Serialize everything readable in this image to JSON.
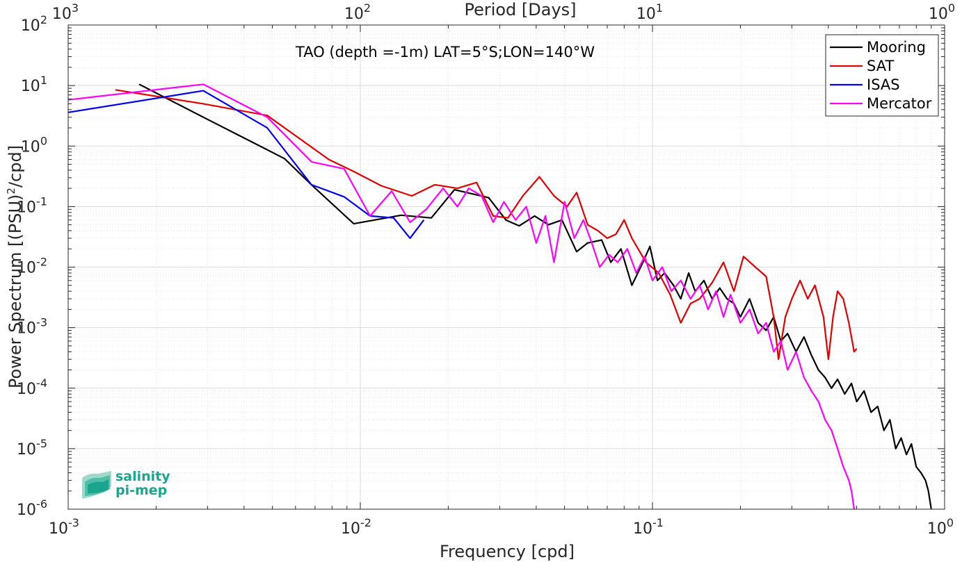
{
  "chart_data": {
    "type": "line",
    "annotation": "TAO (depth =-1m) LAT=5°S;LON=140°W",
    "xlabel": "Frequency [cpd]",
    "ylabel": "Power Spectrum [(PSU)²/cpd]",
    "ylabel_parts": {
      "main": "Power Spectrum [(PSU)",
      "sup": "2",
      "tail": "/cpd]"
    },
    "top_xlabel": "Period [Days]",
    "xscale": "log",
    "yscale": "log",
    "xlim": [
      0.001,
      1
    ],
    "ylim": [
      1e-06,
      100
    ],
    "grid": true,
    "legend_position": "top-right",
    "x_ticks": [
      {
        "value": 0.001,
        "base": "10",
        "exp": "-3"
      },
      {
        "value": 0.01,
        "base": "10",
        "exp": "-2"
      },
      {
        "value": 0.1,
        "base": "10",
        "exp": "-1"
      },
      {
        "value": 1,
        "base": "10",
        "exp": "0"
      }
    ],
    "top_ticks": [
      {
        "freq": 0.001,
        "base": "10",
        "exp": "3"
      },
      {
        "freq": 0.01,
        "base": "10",
        "exp": "2"
      },
      {
        "freq": 0.1,
        "base": "10",
        "exp": "1"
      },
      {
        "freq": 1,
        "base": "10",
        "exp": "0"
      }
    ],
    "y_ticks": [
      {
        "value": 100,
        "base": "10",
        "exp": "2"
      },
      {
        "value": 10,
        "base": "10",
        "exp": "1"
      },
      {
        "value": 1,
        "base": "10",
        "exp": "0"
      },
      {
        "value": 0.1,
        "base": "10",
        "exp": "-1"
      },
      {
        "value": 0.01,
        "base": "10",
        "exp": "-2"
      },
      {
        "value": 0.001,
        "base": "10",
        "exp": "-3"
      },
      {
        "value": 0.0001,
        "base": "10",
        "exp": "-4"
      },
      {
        "value": 1e-05,
        "base": "10",
        "exp": "-5"
      },
      {
        "value": 1e-06,
        "base": "10",
        "exp": "-6"
      }
    ],
    "series": [
      {
        "name": "Mooring",
        "color": "#000000",
        "points": [
          [
            0.00175,
            10.5
          ],
          [
            0.0029,
            3.0
          ],
          [
            0.0055,
            0.62
          ],
          [
            0.0068,
            0.23
          ],
          [
            0.0095,
            0.052
          ],
          [
            0.0138,
            0.072
          ],
          [
            0.0175,
            0.065
          ],
          [
            0.021,
            0.19
          ],
          [
            0.0275,
            0.14
          ],
          [
            0.0315,
            0.06
          ],
          [
            0.035,
            0.048
          ],
          [
            0.0395,
            0.07
          ],
          [
            0.044,
            0.05
          ],
          [
            0.049,
            0.06
          ],
          [
            0.055,
            0.018
          ],
          [
            0.06,
            0.025
          ],
          [
            0.067,
            0.028
          ],
          [
            0.072,
            0.012
          ],
          [
            0.078,
            0.02
          ],
          [
            0.085,
            0.005
          ],
          [
            0.092,
            0.011
          ],
          [
            0.098,
            0.022
          ],
          [
            0.104,
            0.006
          ],
          [
            0.11,
            0.008
          ],
          [
            0.118,
            0.005
          ],
          [
            0.125,
            0.003
          ],
          [
            0.133,
            0.008
          ],
          [
            0.14,
            0.004
          ],
          [
            0.15,
            0.006
          ],
          [
            0.16,
            0.003
          ],
          [
            0.17,
            0.0045
          ],
          [
            0.18,
            0.003
          ],
          [
            0.19,
            0.0025
          ],
          [
            0.2,
            0.0015
          ],
          [
            0.215,
            0.003
          ],
          [
            0.23,
            0.0012
          ],
          [
            0.245,
            0.0009
          ],
          [
            0.26,
            0.0015
          ],
          [
            0.275,
            0.0006
          ],
          [
            0.29,
            0.0008
          ],
          [
            0.31,
            0.0004
          ],
          [
            0.33,
            0.0007
          ],
          [
            0.35,
            0.00035
          ],
          [
            0.37,
            0.0002
          ],
          [
            0.39,
            0.00015
          ],
          [
            0.41,
            0.0001
          ],
          [
            0.43,
            0.00014
          ],
          [
            0.455,
            8e-05
          ],
          [
            0.48,
            0.00012
          ],
          [
            0.5,
            6e-05
          ],
          [
            0.53,
            9e-05
          ],
          [
            0.56,
            4e-05
          ],
          [
            0.59,
            5e-05
          ],
          [
            0.62,
            2e-05
          ],
          [
            0.65,
            3e-05
          ],
          [
            0.68,
            1e-05
          ],
          [
            0.71,
            1.5e-05
          ],
          [
            0.74,
            8e-06
          ],
          [
            0.77,
            1.2e-05
          ],
          [
            0.8,
            5e-06
          ],
          [
            0.83,
            4e-06
          ],
          [
            0.86,
            3e-06
          ],
          [
            0.88,
            2e-06
          ],
          [
            0.9,
            1e-06
          ]
        ]
      },
      {
        "name": "SAT",
        "color": "#e00000",
        "points": [
          [
            0.00145,
            8.5
          ],
          [
            0.0029,
            5.0
          ],
          [
            0.0048,
            3.2
          ],
          [
            0.0078,
            0.6
          ],
          [
            0.0095,
            0.38
          ],
          [
            0.0118,
            0.22
          ],
          [
            0.015,
            0.15
          ],
          [
            0.018,
            0.23
          ],
          [
            0.0215,
            0.2
          ],
          [
            0.025,
            0.25
          ],
          [
            0.0285,
            0.07
          ],
          [
            0.032,
            0.065
          ],
          [
            0.036,
            0.15
          ],
          [
            0.041,
            0.31
          ],
          [
            0.046,
            0.15
          ],
          [
            0.051,
            0.1
          ],
          [
            0.055,
            0.17
          ],
          [
            0.06,
            0.05
          ],
          [
            0.065,
            0.04
          ],
          [
            0.07,
            0.03
          ],
          [
            0.075,
            0.035
          ],
          [
            0.08,
            0.06
          ],
          [
            0.085,
            0.03
          ],
          [
            0.095,
            0.012
          ],
          [
            0.105,
            0.008
          ],
          [
            0.115,
            0.0035
          ],
          [
            0.125,
            0.0012
          ],
          [
            0.135,
            0.0025
          ],
          [
            0.145,
            0.003
          ],
          [
            0.16,
            0.0055
          ],
          [
            0.175,
            0.012
          ],
          [
            0.19,
            0.004
          ],
          [
            0.205,
            0.015
          ],
          [
            0.225,
            0.01
          ],
          [
            0.245,
            0.007
          ],
          [
            0.26,
            0.0015
          ],
          [
            0.27,
            0.0003
          ],
          [
            0.285,
            0.0015
          ],
          [
            0.3,
            0.003
          ],
          [
            0.32,
            0.006
          ],
          [
            0.34,
            0.003
          ],
          [
            0.36,
            0.005
          ],
          [
            0.385,
            0.0015
          ],
          [
            0.4,
            0.0003
          ],
          [
            0.415,
            0.0015
          ],
          [
            0.43,
            0.004
          ],
          [
            0.45,
            0.003
          ],
          [
            0.47,
            0.0012
          ],
          [
            0.49,
            0.0004
          ],
          [
            0.5,
            0.00045
          ]
        ]
      },
      {
        "name": "ISAS",
        "color": "#0000ee",
        "points": [
          [
            0.001,
            3.6
          ],
          [
            0.0029,
            8.2
          ],
          [
            0.0048,
            2.0
          ],
          [
            0.0068,
            0.23
          ],
          [
            0.0088,
            0.145
          ],
          [
            0.0108,
            0.07
          ],
          [
            0.013,
            0.065
          ],
          [
            0.0148,
            0.03
          ],
          [
            0.0165,
            0.06
          ]
        ]
      },
      {
        "name": "Mercator",
        "color": "#ff00ff",
        "points": [
          [
            0.001,
            5.8
          ],
          [
            0.0029,
            10.5
          ],
          [
            0.0048,
            3.0
          ],
          [
            0.0068,
            0.55
          ],
          [
            0.0088,
            0.42
          ],
          [
            0.0108,
            0.07
          ],
          [
            0.0128,
            0.18
          ],
          [
            0.0148,
            0.055
          ],
          [
            0.0168,
            0.09
          ],
          [
            0.0192,
            0.2
          ],
          [
            0.0215,
            0.1
          ],
          [
            0.0235,
            0.2
          ],
          [
            0.026,
            0.15
          ],
          [
            0.0285,
            0.055
          ],
          [
            0.031,
            0.12
          ],
          [
            0.034,
            0.06
          ],
          [
            0.037,
            0.1
          ],
          [
            0.04,
            0.025
          ],
          [
            0.043,
            0.07
          ],
          [
            0.046,
            0.012
          ],
          [
            0.05,
            0.12
          ],
          [
            0.054,
            0.03
          ],
          [
            0.058,
            0.06
          ],
          [
            0.062,
            0.025
          ],
          [
            0.066,
            0.01
          ],
          [
            0.071,
            0.016
          ],
          [
            0.076,
            0.012
          ],
          [
            0.082,
            0.02
          ],
          [
            0.088,
            0.008
          ],
          [
            0.094,
            0.015
          ],
          [
            0.1,
            0.006
          ],
          [
            0.108,
            0.01
          ],
          [
            0.116,
            0.004
          ],
          [
            0.125,
            0.006
          ],
          [
            0.135,
            0.003
          ],
          [
            0.145,
            0.005
          ],
          [
            0.155,
            0.002
          ],
          [
            0.165,
            0.004
          ],
          [
            0.175,
            0.0015
          ],
          [
            0.185,
            0.0035
          ],
          [
            0.2,
            0.0012
          ],
          [
            0.215,
            0.002
          ],
          [
            0.23,
            0.0008
          ],
          [
            0.245,
            0.0012
          ],
          [
            0.26,
            0.0004
          ],
          [
            0.275,
            0.0006
          ],
          [
            0.29,
            0.0002
          ],
          [
            0.31,
            0.0004
          ],
          [
            0.33,
            0.00015
          ],
          [
            0.35,
            9e-05
          ],
          [
            0.37,
            6e-05
          ],
          [
            0.39,
            3e-05
          ],
          [
            0.41,
            2e-05
          ],
          [
            0.43,
            1e-05
          ],
          [
            0.45,
            5e-06
          ],
          [
            0.47,
            3e-06
          ],
          [
            0.48,
            2e-06
          ],
          [
            0.49,
            1e-06
          ]
        ]
      }
    ]
  },
  "logo": {
    "line1": "salinity",
    "line2": "pi-mep",
    "color": "#1aa58e"
  }
}
